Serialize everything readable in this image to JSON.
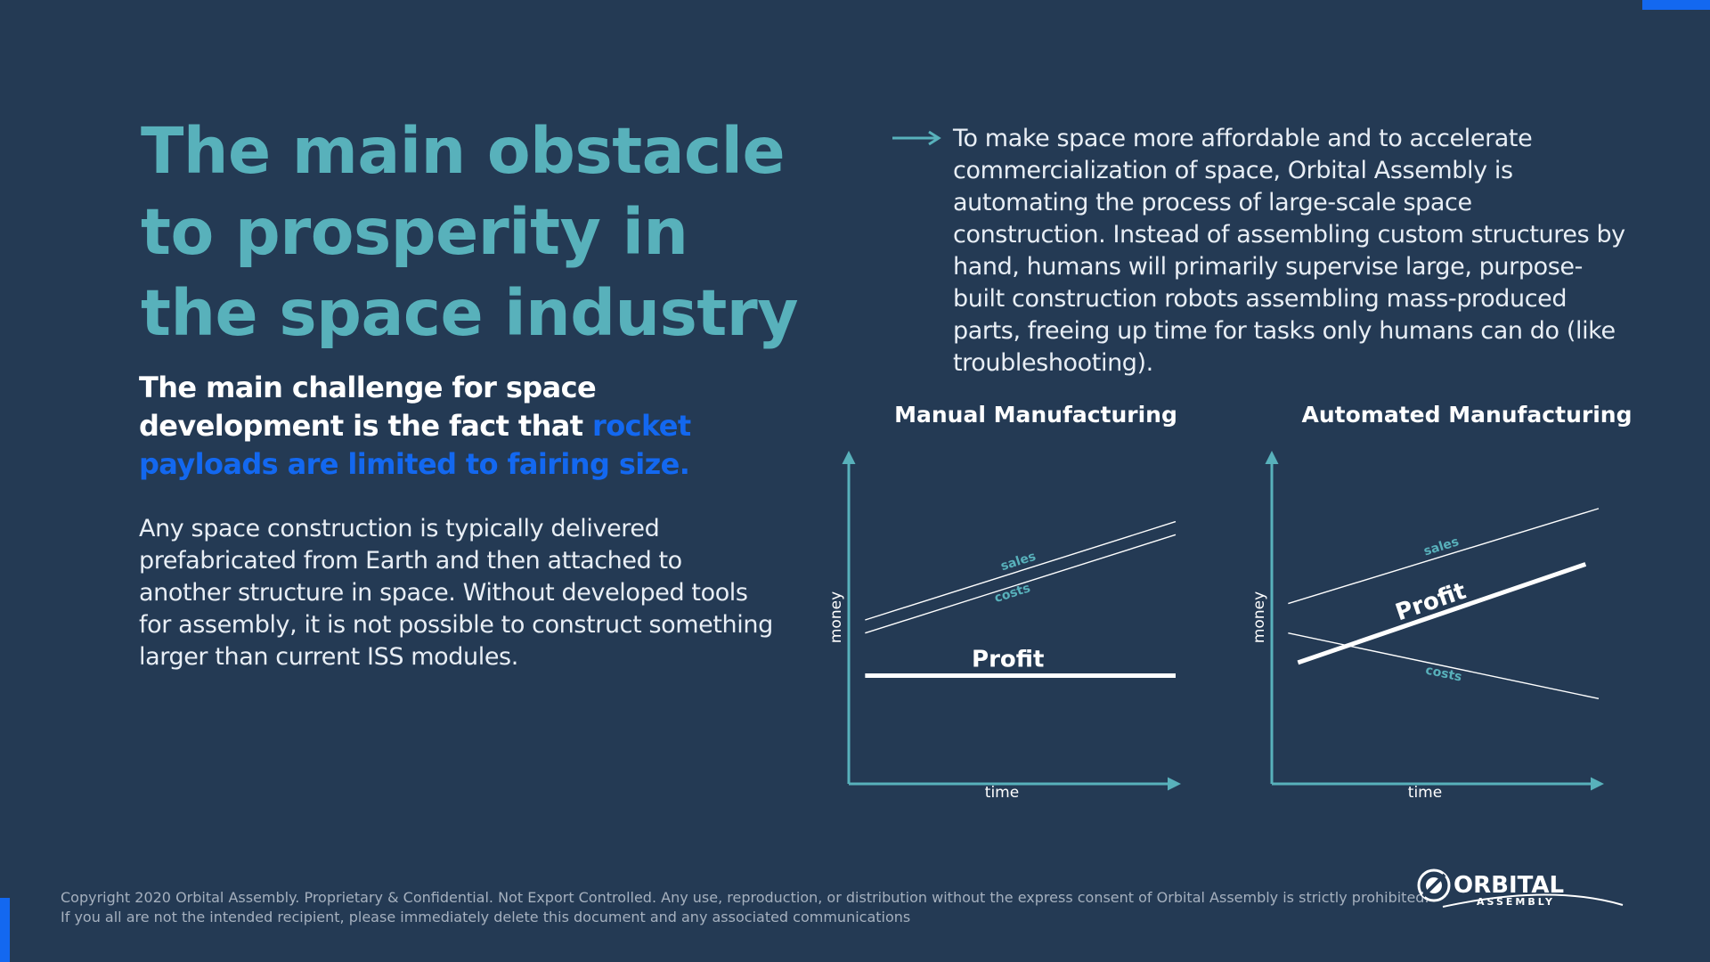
{
  "title": {
    "lines": [
      "The main obstacle",
      "to prosperity in",
      "the space industry"
    ]
  },
  "challenge": {
    "prefix": "The main challenge for space development is the fact that ",
    "highlight": "rocket payloads are limited to fairing size."
  },
  "body": "Any space construction is typically delivered prefabricated from Earth and then attached to another structure in space. Without developed tools for assembly, it is not possible to construct something larger than current ISS modules.",
  "right_text": "To make space more affordable and to accelerate commercialization of space, Orbital Assembly is automating the process of large-scale space construction. Instead of assembling custom structures by hand, humans will primarily supervise large, purpose-built construction robots assembling mass-produced parts, freeing up time for tasks only humans can do (like troubleshooting).",
  "colors": {
    "background": "#243a54",
    "title": "#58b1bb",
    "highlight": "#1368f0",
    "axis": "#58b1bb",
    "line": "#ffffff"
  },
  "icons": {
    "bullet": "arrow-right-icon",
    "logo": "orbital-assembly-logo"
  },
  "chart_data": [
    {
      "type": "line",
      "title": "Manual Manufacturing",
      "xlabel": "time",
      "ylabel": "money",
      "series": [
        {
          "name": "sales",
          "points": [
            [
              0.05,
              0.5
            ],
            [
              1.0,
              0.8
            ]
          ]
        },
        {
          "name": "costs",
          "points": [
            [
              0.05,
              0.46
            ],
            [
              1.0,
              0.76
            ]
          ]
        },
        {
          "name": "Profit",
          "points": [
            [
              0.05,
              0.33
            ],
            [
              1.0,
              0.33
            ]
          ]
        }
      ]
    },
    {
      "type": "line",
      "title": "Automated Manufacturing",
      "xlabel": "time",
      "ylabel": "money",
      "series": [
        {
          "name": "sales",
          "points": [
            [
              0.05,
              0.55
            ],
            [
              1.0,
              0.84
            ]
          ]
        },
        {
          "name": "costs",
          "points": [
            [
              0.05,
              0.46
            ],
            [
              1.0,
              0.26
            ]
          ]
        },
        {
          "name": "Profit",
          "points": [
            [
              0.08,
              0.37
            ],
            [
              0.96,
              0.67
            ]
          ]
        }
      ]
    }
  ],
  "footer": {
    "line1": "Copyright 2020 Orbital Assembly. Proprietary & Confidential. Not Export Controlled. Any use, reproduction, or distribution without the express consent of Orbital Assembly is strictly prohibited.",
    "line2": "If you all are not the intended recipient, please immediately delete this document and any associated communications"
  },
  "logo": {
    "word1": "ORBITAL",
    "word2": "ASSEMBLY"
  }
}
